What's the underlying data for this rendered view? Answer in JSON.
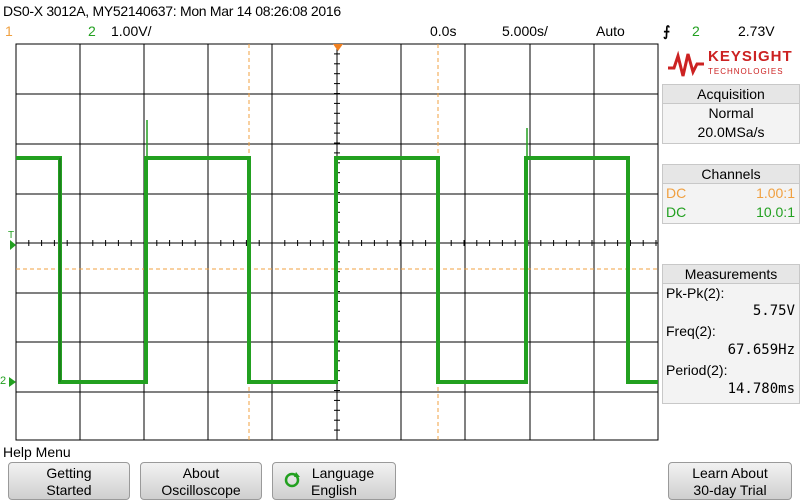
{
  "title": "DS0-X 3012A, MY52140637: Mon Mar 14 08:26:08 2016",
  "status": {
    "ch1_label": "1",
    "ch2_label": "2",
    "ch2_scale": "1.00V/",
    "delay": "0.0s",
    "timebase": "5.000s/",
    "trigger_mode": "Auto",
    "trigger_icon": "trigger-edge-icon",
    "trigger_source": "2",
    "trigger_level": "2.73V"
  },
  "brand": {
    "name": "KEYSIGHT",
    "subtitle": "TECHNOLOGIES"
  },
  "acquisition": {
    "header": "Acquisition",
    "mode": "Normal",
    "rate": "20.0MSa/s"
  },
  "channels": {
    "header": "Channels",
    "rows": [
      {
        "coupling": "DC",
        "probe": "1.00:1",
        "color": "#f0a040"
      },
      {
        "coupling": "DC",
        "probe": "10.0:1",
        "color": "#22a020"
      }
    ]
  },
  "measurements": {
    "header": "Measurements",
    "items": [
      {
        "label": "Pk-Pk(2):",
        "value": "5.75V"
      },
      {
        "label": "Freq(2):",
        "value": "67.659Hz"
      },
      {
        "label": "Period(2):",
        "value": "14.780ms"
      }
    ]
  },
  "help_menu": "Help Menu",
  "softkeys": [
    {
      "line1": "Getting",
      "line2": "Started"
    },
    {
      "line1": "About",
      "line2": "Oscilloscope"
    },
    {
      "line1": "Language",
      "line2": "English"
    },
    {
      "line1": "Learn About",
      "line2": "30-day Trial"
    }
  ],
  "colors": {
    "ch1": "#f0a040",
    "ch2": "#22a020",
    "trigger_marker": "#f08020"
  },
  "markers": {
    "trigger": "T",
    "ch2_ground": "2"
  }
}
